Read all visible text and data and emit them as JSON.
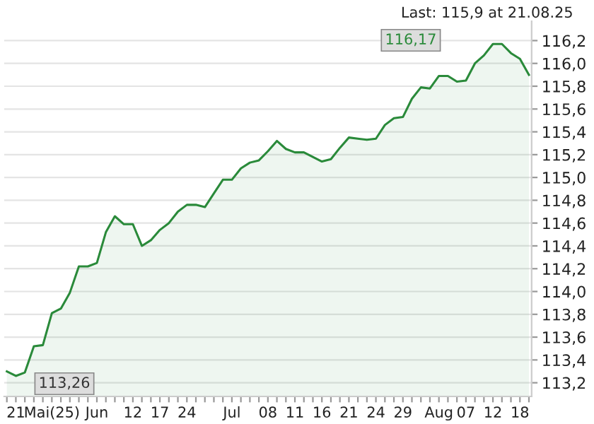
{
  "chart_data": {
    "type": "area",
    "color": "#2a8a3a",
    "categories": [
      null,
      "21",
      null,
      null,
      null,
      "Mai(25)",
      null,
      null,
      null,
      null,
      "Jun",
      null,
      null,
      null,
      "12",
      null,
      null,
      "17",
      null,
      null,
      "24",
      null,
      null,
      null,
      null,
      "Jul",
      null,
      null,
      null,
      "08",
      null,
      null,
      "11",
      null,
      null,
      "16",
      null,
      null,
      "21",
      null,
      null,
      "24",
      null,
      null,
      "29",
      null,
      null,
      null,
      "Aug",
      null,
      null,
      "07",
      null,
      null,
      "12",
      null,
      null,
      "18",
      null
    ],
    "values": [
      113.3,
      113.26,
      113.29,
      113.52,
      113.53,
      113.81,
      113.85,
      113.99,
      114.22,
      114.22,
      114.25,
      114.52,
      114.66,
      114.59,
      114.59,
      114.4,
      114.45,
      114.54,
      114.6,
      114.7,
      114.76,
      114.76,
      114.74,
      114.86,
      114.98,
      114.98,
      115.08,
      115.13,
      115.15,
      115.23,
      115.32,
      115.25,
      115.22,
      115.22,
      115.18,
      115.14,
      115.16,
      115.26,
      115.35,
      115.34,
      115.33,
      115.34,
      115.46,
      115.52,
      115.53,
      115.69,
      115.79,
      115.78,
      115.89,
      115.89,
      115.84,
      115.85,
      116.0,
      116.07,
      116.17,
      116.17,
      116.09,
      116.04,
      115.9
    ],
    "ylim": [
      113.08,
      116.37
    ],
    "yticks": [
      {
        "value": 113.2,
        "label": "113,2"
      },
      {
        "value": 113.4,
        "label": "113,4"
      },
      {
        "value": 113.6,
        "label": "113,6"
      },
      {
        "value": 113.8,
        "label": "113,8"
      },
      {
        "value": 114.0,
        "label": "114,0"
      },
      {
        "value": 114.2,
        "label": "114,2"
      },
      {
        "value": 114.4,
        "label": "114,4"
      },
      {
        "value": 114.6,
        "label": "114,6"
      },
      {
        "value": 114.8,
        "label": "114,8"
      },
      {
        "value": 115.0,
        "label": "115,0"
      },
      {
        "value": 115.2,
        "label": "115,2"
      },
      {
        "value": 115.4,
        "label": "115,4"
      },
      {
        "value": 115.6,
        "label": "115,6"
      },
      {
        "value": 115.8,
        "label": "115,8"
      },
      {
        "value": 116.0,
        "label": "116,0"
      },
      {
        "value": 116.2,
        "label": "116,2"
      }
    ],
    "grid": "y",
    "annotations": [
      "Last: 115,9 at 21.08.25",
      "116,17",
      "113,26"
    ]
  }
}
